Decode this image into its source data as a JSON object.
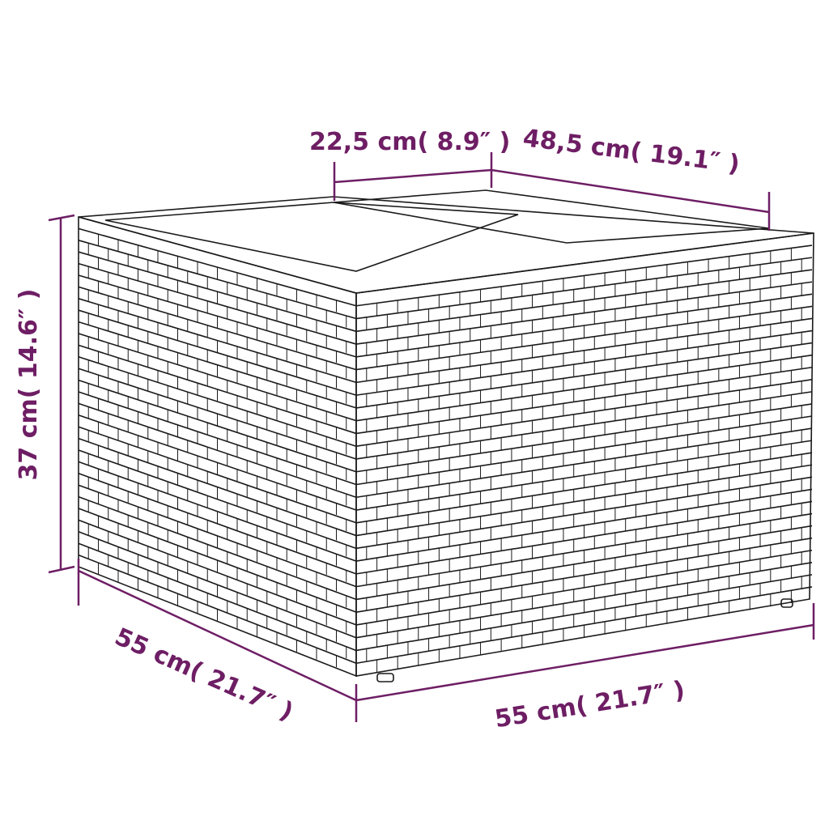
{
  "colors": {
    "dimension": "#6e1e64",
    "outline": "#1a1a1a",
    "background": "#ffffff"
  },
  "dimensions": {
    "top_left": "22,5 cm( 8.9″ )",
    "top_right": "48,5 cm( 19.1″ )",
    "height": "37 cm( 14.6″ )",
    "depth": "55 cm( 21.7″ )",
    "width": "55 cm( 21.7″ )"
  }
}
